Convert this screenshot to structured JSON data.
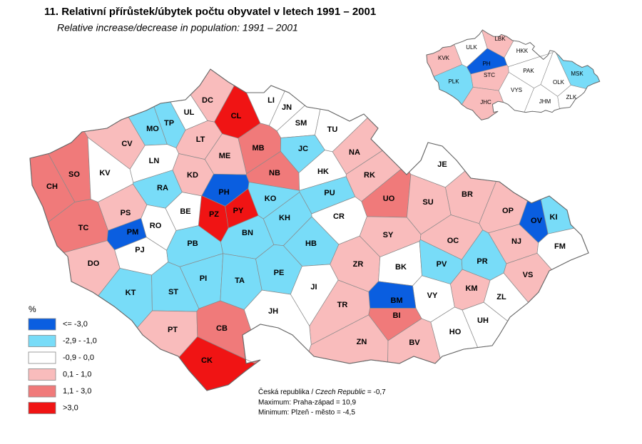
{
  "title": "11. Relativní přírůstek/úbytek počtu obyvatel v letech 1991 – 2001",
  "subtitle": "Relative increase/decrease in population: 1991 – 2001",
  "legend": {
    "title": "%",
    "classes": [
      {
        "label": "<= -3,0",
        "color": "#0a5ee0"
      },
      {
        "label": "-2,9 - -1,0",
        "color": "#78dcf8"
      },
      {
        "label": "-0,9 - 0,0",
        "color": "#ffffff"
      },
      {
        "label": "0,1 - 1,0",
        "color": "#f9bcbc"
      },
      {
        "label": "1,1 - 3,0",
        "color": "#f07a7a"
      },
      {
        "label": ">3,0",
        "color": "#f01414"
      }
    ]
  },
  "districts": [
    {
      "label": "CH",
      "class": 4
    },
    {
      "label": "SO",
      "class": 4
    },
    {
      "label": "KV",
      "class": 2
    },
    {
      "label": "CV",
      "class": 3
    },
    {
      "label": "MO",
      "class": 1
    },
    {
      "label": "TP",
      "class": 1
    },
    {
      "label": "UL",
      "class": 2
    },
    {
      "label": "DC",
      "class": 3
    },
    {
      "label": "CL",
      "class": 5
    },
    {
      "label": "LI",
      "class": 2
    },
    {
      "label": "JN",
      "class": 2
    },
    {
      "label": "SM",
      "class": 2
    },
    {
      "label": "TU",
      "class": 2
    },
    {
      "label": "LN",
      "class": 2
    },
    {
      "label": "LT",
      "class": 3
    },
    {
      "label": "ME",
      "class": 3
    },
    {
      "label": "MB",
      "class": 4
    },
    {
      "label": "JC",
      "class": 1
    },
    {
      "label": "NA",
      "class": 3
    },
    {
      "label": "KD",
      "class": 3
    },
    {
      "label": "RA",
      "class": 1
    },
    {
      "label": "PH",
      "class": 0
    },
    {
      "label": "NB",
      "class": 4
    },
    {
      "label": "HK",
      "class": 2
    },
    {
      "label": "RK",
      "class": 3
    },
    {
      "label": "JE",
      "class": 2
    },
    {
      "label": "PZ",
      "class": 5
    },
    {
      "label": "PY",
      "class": 5
    },
    {
      "label": "KO",
      "class": 1
    },
    {
      "label": "PU",
      "class": 1
    },
    {
      "label": "UO",
      "class": 4
    },
    {
      "label": "BR",
      "class": 3
    },
    {
      "label": "SU",
      "class": 3
    },
    {
      "label": "BE",
      "class": 2
    },
    {
      "label": "RO",
      "class": 2
    },
    {
      "label": "PS",
      "class": 3
    },
    {
      "label": "TC",
      "class": 4
    },
    {
      "label": "PM",
      "class": 0
    },
    {
      "label": "KH",
      "class": 1
    },
    {
      "label": "CR",
      "class": 2
    },
    {
      "label": "OP",
      "class": 3
    },
    {
      "label": "OV",
      "class": 0
    },
    {
      "label": "KI",
      "class": 1
    },
    {
      "label": "PJ",
      "class": 2
    },
    {
      "label": "PB",
      "class": 1
    },
    {
      "label": "BN",
      "class": 1
    },
    {
      "label": "HB",
      "class": 1
    },
    {
      "label": "SY",
      "class": 3
    },
    {
      "label": "OC",
      "class": 3
    },
    {
      "label": "NJ",
      "class": 3
    },
    {
      "label": "FM",
      "class": 2
    },
    {
      "label": "DO",
      "class": 3
    },
    {
      "label": "PI",
      "class": 1
    },
    {
      "label": "TA",
      "class": 1
    },
    {
      "label": "PE",
      "class": 1
    },
    {
      "label": "ZR",
      "class": 3
    },
    {
      "label": "BK",
      "class": 2
    },
    {
      "label": "PV",
      "class": 1
    },
    {
      "label": "PR",
      "class": 1
    },
    {
      "label": "VS",
      "class": 3
    },
    {
      "label": "KT",
      "class": 1
    },
    {
      "label": "ST",
      "class": 1
    },
    {
      "label": "JI",
      "class": 2
    },
    {
      "label": "KM",
      "class": 3
    },
    {
      "label": "VY",
      "class": 2
    },
    {
      "label": "ZL",
      "class": 2
    },
    {
      "label": "BM",
      "class": 0
    },
    {
      "label": "BI",
      "class": 4
    },
    {
      "label": "TR",
      "class": 3
    },
    {
      "label": "JH",
      "class": 2
    },
    {
      "label": "UH",
      "class": 2
    },
    {
      "label": "PT",
      "class": 3
    },
    {
      "label": "CB",
      "class": 4
    },
    {
      "label": "HO",
      "class": 2
    },
    {
      "label": "ZN",
      "class": 3
    },
    {
      "label": "BV",
      "class": 3
    },
    {
      "label": "CK",
      "class": 5
    }
  ],
  "regions": [
    {
      "label": "KVK",
      "class": 3
    },
    {
      "label": "ULK",
      "class": 2
    },
    {
      "label": "LBK",
      "class": 3
    },
    {
      "label": "HKK",
      "class": 2
    },
    {
      "label": "PH",
      "class": 0
    },
    {
      "label": "STC",
      "class": 3
    },
    {
      "label": "PAK",
      "class": 2
    },
    {
      "label": "PLK",
      "class": 1
    },
    {
      "label": "VYS",
      "class": 2
    },
    {
      "label": "OLK",
      "class": 2
    },
    {
      "label": "MSK",
      "class": 1
    },
    {
      "label": "JHC",
      "class": 3
    },
    {
      "label": "JHM",
      "class": 2
    },
    {
      "label": "ZLK",
      "class": 2
    }
  ],
  "notes": {
    "national": {
      "label": "Česká republika / ",
      "label_en": "Czech Republic",
      "value": " =  -0,7"
    },
    "maximum": "Maximum:  Praha-západ  = 10,9",
    "minimum": "Minimum:  Plzeň - město = -4,5"
  }
}
